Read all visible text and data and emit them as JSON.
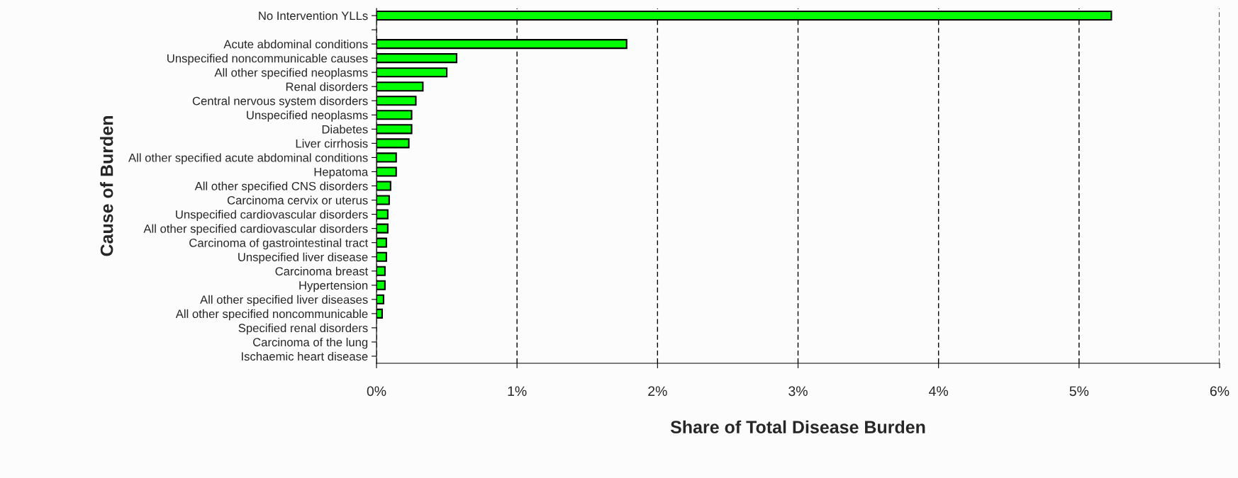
{
  "chart_data": {
    "type": "bar",
    "orientation": "horizontal",
    "xlabel": "Share of Total Disease Burden",
    "ylabel": "Cause of Burden",
    "categories": [
      "No Intervention YLLs",
      null,
      "Acute abdominal conditions",
      "Unspecified noncommunicable causes",
      "All other specified neoplasms",
      "Renal disorders",
      "Central nervous system disorders",
      "Unspecified neoplasms",
      "Diabetes",
      "Liver cirrhosis",
      "All other specified acute abdominal conditions",
      "Hepatoma",
      "All other specified CNS disorders",
      "Carcinoma cervix or uterus",
      "Unspecified cardiovascular disorders",
      "All other specified cardiovascular disorders",
      "Carcinoma of gastrointestinal tract",
      "Unspecified liver disease",
      "Carcinoma breast",
      "Hypertension",
      "All other specified liver diseases",
      "All other specified noncommunicable",
      "Specified renal disorders",
      "Carcinoma of the lung",
      "Ischaemic heart disease"
    ],
    "values": [
      5.23,
      null,
      1.78,
      0.57,
      0.5,
      0.33,
      0.28,
      0.25,
      0.25,
      0.23,
      0.14,
      0.14,
      0.1,
      0.09,
      0.08,
      0.08,
      0.07,
      0.07,
      0.06,
      0.06,
      0.05,
      0.04,
      0,
      0,
      0
    ],
    "color": "#00ff00",
    "xlim": [
      0,
      6
    ],
    "xticks": [
      {
        "value": 0,
        "label": "0%"
      },
      {
        "value": 1,
        "label": "1%"
      },
      {
        "value": 2,
        "label": "2%"
      },
      {
        "value": 3,
        "label": "3%"
      },
      {
        "value": 4,
        "label": "4%"
      },
      {
        "value": 5,
        "label": "5%"
      },
      {
        "value": 6,
        "label": "6%"
      }
    ],
    "grid": "x",
    "legend": false
  }
}
